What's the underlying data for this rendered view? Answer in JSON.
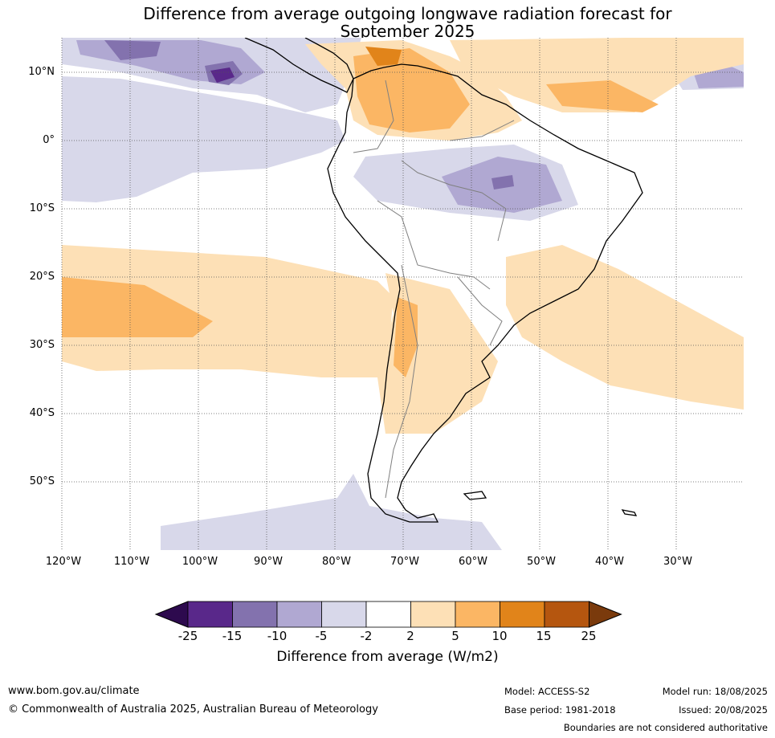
{
  "title": {
    "line1": "Difference from average outgoing longwave radiation forecast for",
    "line2": "September 2025"
  },
  "map": {
    "lat_labels": [
      "10°N",
      "0°",
      "10°S",
      "20°S",
      "30°S",
      "40°S",
      "50°S"
    ],
    "lon_labels": [
      "120°W",
      "110°W",
      "100°W",
      "90°W",
      "80°W",
      "70°W",
      "60°W",
      "50°W",
      "40°W",
      "30°W"
    ],
    "extent": {
      "lon": [
        -120,
        -20
      ],
      "lat": [
        -60,
        15
      ]
    }
  },
  "legend": {
    "label": "Difference from average (W/m2)",
    "ticks": [
      "-25",
      "-15",
      "-10",
      "-5",
      "-2",
      "2",
      "5",
      "10",
      "15",
      "25"
    ],
    "colors": [
      "#2d0a4e",
      "#59288a",
      "#8372ae",
      "#b0a8d2",
      "#d8d8ea",
      "#ffffff",
      "#fde0b6",
      "#fbb664",
      "#e1841a",
      "#b5560f",
      "#7a3a0c"
    ]
  },
  "footer": {
    "website": "www.bom.gov.au/climate",
    "copyright": "© Commonwealth of Australia 2025, Australian Bureau of Meteorology",
    "model": "Model: ACCESS-S2",
    "base_period": "Base period: 1981-2018",
    "model_run": "Model run: 18/08/2025",
    "issued": "Issued: 20/08/2025",
    "boundaries": "Boundaries are not considered authoritative"
  }
}
